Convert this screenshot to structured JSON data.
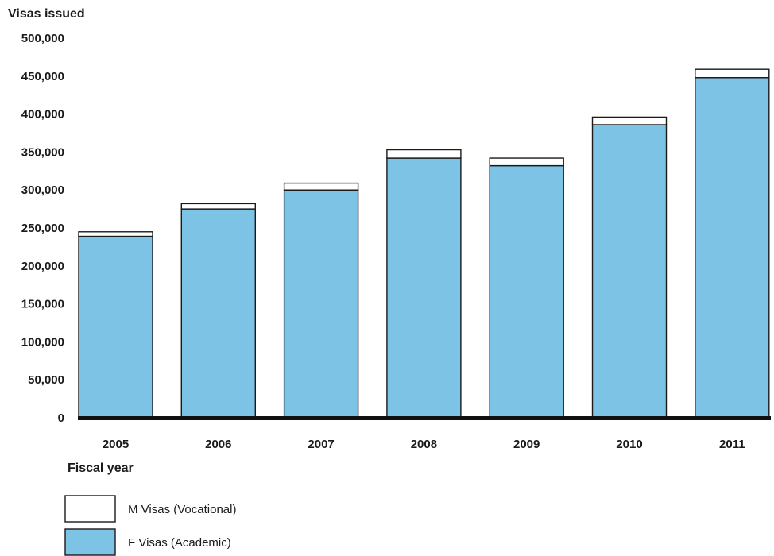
{
  "chart_data": {
    "type": "bar",
    "stacked": true,
    "ylabel": "Visas issued",
    "xlabel": "Fiscal year",
    "categories": [
      "2005",
      "2006",
      "2007",
      "2008",
      "2009",
      "2010",
      "2011"
    ],
    "series": [
      {
        "name": "F Visas (Academic)",
        "color": "#7cc3e6",
        "values": [
          239000,
          275000,
          300000,
          342000,
          332000,
          386000,
          448000
        ]
      },
      {
        "name": "M Visas (Vocational)",
        "color": "#ffffff",
        "values": [
          6000,
          7000,
          9000,
          11000,
          10000,
          10000,
          11000
        ]
      }
    ],
    "ylim": [
      0,
      500000
    ],
    "yticks": [
      0,
      50000,
      100000,
      150000,
      200000,
      250000,
      300000,
      350000,
      400000,
      450000,
      500000
    ],
    "ytick_labels": [
      "0",
      "50,000",
      "100,000",
      "150,000",
      "200,000",
      "250,000",
      "300,000",
      "350,000",
      "400,000",
      "450,000",
      "500,000"
    ],
    "grid": false,
    "legend_position": "bottom-left",
    "legend_order": [
      "M Visas (Vocational)",
      "F Visas (Academic)"
    ],
    "axis_color": "#111111",
    "bar_outline": "#1a1a1a"
  }
}
